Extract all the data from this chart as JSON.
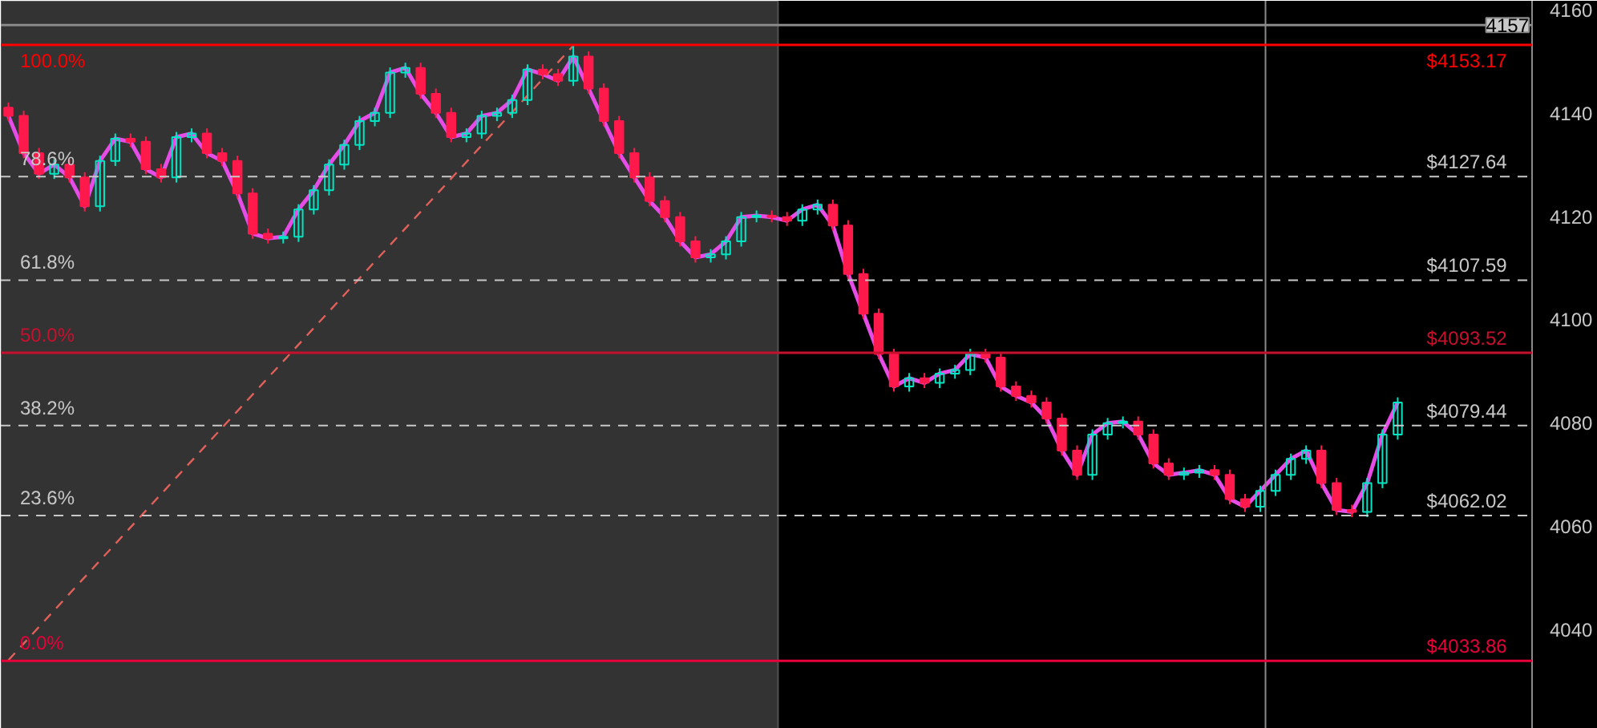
{
  "chart_data": {
    "type": "candlestick",
    "categories": [
      null,
      null,
      null,
      null,
      null,
      null,
      null,
      null,
      null,
      null,
      null,
      null,
      null,
      null,
      null,
      null,
      null,
      null,
      null,
      null,
      null,
      null,
      null,
      null,
      null,
      null,
      null,
      null,
      null,
      null,
      null,
      null,
      null,
      null,
      null,
      null,
      null,
      null,
      null,
      null,
      null,
      null,
      null,
      null,
      null,
      null,
      null,
      null,
      null,
      null,
      null,
      null,
      null,
      null,
      null,
      null,
      null,
      null,
      null,
      null,
      null,
      null,
      null,
      null,
      null,
      null,
      null,
      null,
      null,
      null,
      null,
      null,
      null,
      null,
      null,
      null,
      null,
      null,
      null,
      null,
      null,
      null,
      null,
      null,
      null,
      null,
      null,
      null,
      null,
      null,
      null,
      null
    ],
    "ohlc": [
      [
        4141.0,
        4142.0,
        4138.4,
        4139.4
      ],
      [
        4139.4,
        4140.4,
        4131.2,
        4132.2
      ],
      [
        4132.2,
        4133.2,
        4127.2,
        4128.2
      ],
      [
        4128.2,
        4131.0,
        4127.2,
        4130.0
      ],
      [
        4130.0,
        4131.0,
        4126.5,
        4127.5
      ],
      [
        4127.5,
        4128.5,
        4120.9,
        4121.9
      ],
      [
        4121.9,
        4131.7,
        4120.9,
        4130.7
      ],
      [
        4130.7,
        4136.0,
        4129.7,
        4135.0
      ],
      [
        4135.0,
        4136.0,
        4133.4,
        4134.4
      ],
      [
        4134.4,
        4135.4,
        4128.1,
        4129.1
      ],
      [
        4129.1,
        4130.1,
        4126.5,
        4127.5
      ],
      [
        4127.5,
        4136.3,
        4126.5,
        4135.3
      ],
      [
        4135.3,
        4137.0,
        4134.3,
        4136.0
      ],
      [
        4136.0,
        4137.0,
        4131.2,
        4132.2
      ],
      [
        4132.2,
        4133.2,
        4129.7,
        4130.7
      ],
      [
        4130.7,
        4131.7,
        4123.4,
        4124.4
      ],
      [
        4124.4,
        4125.4,
        4115.6,
        4116.6
      ],
      [
        4116.6,
        4117.6,
        4114.7,
        4115.7
      ],
      [
        4115.7,
        4117.0,
        4114.7,
        4116.0
      ],
      [
        4116.0,
        4122.3,
        4115.0,
        4121.3
      ],
      [
        4121.3,
        4126.0,
        4120.3,
        4125.0
      ],
      [
        4125.0,
        4131.0,
        4124.0,
        4130.0
      ],
      [
        4130.0,
        4134.8,
        4129.0,
        4133.8
      ],
      [
        4133.8,
        4139.4,
        4132.8,
        4138.4
      ],
      [
        4138.4,
        4141.0,
        4137.4,
        4140.0
      ],
      [
        4140.0,
        4148.8,
        4139.0,
        4147.8
      ],
      [
        4147.8,
        4149.7,
        4146.8,
        4148.7
      ],
      [
        4148.7,
        4149.7,
        4142.7,
        4143.7
      ],
      [
        4143.7,
        4144.7,
        4139.0,
        4140.0
      ],
      [
        4140.0,
        4141.0,
        4134.3,
        4135.3
      ],
      [
        4135.3,
        4137.0,
        4134.3,
        4136.0
      ],
      [
        4136.0,
        4140.4,
        4135.0,
        4139.4
      ],
      [
        4139.4,
        4141.0,
        4138.4,
        4140.0
      ],
      [
        4140.0,
        4143.5,
        4139.0,
        4142.5
      ],
      [
        4142.5,
        4149.4,
        4141.5,
        4148.4
      ],
      [
        4148.4,
        4149.4,
        4146.5,
        4147.5
      ],
      [
        4147.5,
        4148.5,
        4145.2,
        4146.2
      ],
      [
        4146.2,
        4153.2,
        4145.2,
        4150.9
      ],
      [
        4150.9,
        4151.9,
        4143.7,
        4144.7
      ],
      [
        4144.7,
        4145.7,
        4137.4,
        4138.4
      ],
      [
        4138.4,
        4139.4,
        4131.2,
        4132.2
      ],
      [
        4132.2,
        4133.2,
        4126.5,
        4127.5
      ],
      [
        4127.5,
        4128.5,
        4121.9,
        4122.9
      ],
      [
        4122.9,
        4123.9,
        4118.8,
        4119.8
      ],
      [
        4119.8,
        4120.8,
        4114.1,
        4115.1
      ],
      [
        4115.1,
        4116.1,
        4111.0,
        4112.0
      ],
      [
        4112.0,
        4113.6,
        4111.0,
        4112.6
      ],
      [
        4112.6,
        4116.1,
        4111.6,
        4115.1
      ],
      [
        4115.1,
        4120.8,
        4114.1,
        4119.8
      ],
      [
        4119.8,
        4121.1,
        4118.8,
        4120.1
      ],
      [
        4120.1,
        4121.1,
        4118.8,
        4119.8
      ],
      [
        4119.8,
        4120.8,
        4118.1,
        4119.1
      ],
      [
        4119.1,
        4122.3,
        4118.1,
        4121.3
      ],
      [
        4121.3,
        4123.2,
        4120.3,
        4122.2
      ],
      [
        4122.2,
        4123.2,
        4117.2,
        4118.2
      ],
      [
        4118.2,
        4119.2,
        4107.8,
        4108.8
      ],
      [
        4108.8,
        4109.8,
        4100.1,
        4101.1
      ],
      [
        4101.1,
        4102.1,
        4092.3,
        4093.3
      ],
      [
        4093.3,
        4094.3,
        4086.0,
        4087.0
      ],
      [
        4087.0,
        4089.6,
        4086.0,
        4088.6
      ],
      [
        4088.6,
        4089.6,
        4086.7,
        4087.7
      ],
      [
        4087.7,
        4090.5,
        4086.7,
        4089.5
      ],
      [
        4089.5,
        4091.2,
        4088.5,
        4090.2
      ],
      [
        4090.2,
        4094.3,
        4089.2,
        4093.3
      ],
      [
        4093.3,
        4094.3,
        4091.6,
        4092.6
      ],
      [
        4092.6,
        4093.6,
        4086.0,
        4087.0
      ],
      [
        4087.0,
        4088.0,
        4084.2,
        4085.2
      ],
      [
        4085.2,
        4086.2,
        4082.9,
        4083.9
      ],
      [
        4083.9,
        4084.9,
        4079.8,
        4080.8
      ],
      [
        4080.8,
        4081.8,
        4073.6,
        4074.6
      ],
      [
        4074.6,
        4075.6,
        4068.9,
        4069.9
      ],
      [
        4069.9,
        4078.7,
        4068.9,
        4077.7
      ],
      [
        4077.7,
        4080.9,
        4076.7,
        4079.9
      ],
      [
        4079.9,
        4081.2,
        4078.9,
        4080.2
      ],
      [
        4080.2,
        4081.2,
        4076.7,
        4077.7
      ],
      [
        4077.7,
        4078.7,
        4071.1,
        4072.1
      ],
      [
        4072.1,
        4073.1,
        4068.9,
        4069.9
      ],
      [
        4069.9,
        4071.3,
        4068.9,
        4070.3
      ],
      [
        4070.3,
        4071.8,
        4069.3,
        4070.8
      ],
      [
        4070.8,
        4071.8,
        4068.9,
        4069.9
      ],
      [
        4069.9,
        4070.9,
        4064.2,
        4065.2
      ],
      [
        4065.2,
        4066.2,
        4062.7,
        4063.7
      ],
      [
        4063.7,
        4067.8,
        4062.7,
        4066.8
      ],
      [
        4066.8,
        4070.9,
        4065.8,
        4069.9
      ],
      [
        4069.9,
        4074.0,
        4068.9,
        4073.0
      ],
      [
        4073.0,
        4075.6,
        4072.0,
        4074.6
      ],
      [
        4074.6,
        4075.6,
        4067.3,
        4068.3
      ],
      [
        4068.3,
        4069.3,
        4062.1,
        4063.1
      ],
      [
        4063.1,
        4064.1,
        4061.7,
        4062.7
      ],
      [
        4062.7,
        4069.3,
        4061.7,
        4068.3
      ],
      [
        4068.3,
        4078.7,
        4067.3,
        4077.7
      ],
      [
        4077.7,
        4084.9,
        4076.7,
        4083.9
      ]
    ],
    "colors": [
      "#ff1a4b",
      "#ff1a4b",
      "#ff1a4b",
      "#00e5c3",
      "#ff1a4b",
      "#ff1a4b",
      "#00e5c3",
      "#00e5c3",
      "#ff1a4b",
      "#ff1a4b",
      "#ff1a4b",
      "#00e5c3",
      "#00e5c3",
      "#ff1a4b",
      "#ff1a4b",
      "#ff1a4b",
      "#ff1a4b",
      "#ff1a4b",
      "#00e5c3",
      "#00e5c3",
      "#00e5c3",
      "#00e5c3",
      "#00e5c3",
      "#00e5c3",
      "#00e5c3",
      "#00e5c3",
      "#00e5c3",
      "#ff1a4b",
      "#ff1a4b",
      "#ff1a4b",
      "#00e5c3",
      "#00e5c3",
      "#00e5c3",
      "#00e5c3",
      "#00e5c3",
      "#ff1a4b",
      "#ff1a4b",
      "#00e5c3",
      "#ff1a4b",
      "#ff1a4b",
      "#ff1a4b",
      "#ff1a4b",
      "#ff1a4b",
      "#ff1a4b",
      "#ff1a4b",
      "#ff1a4b",
      "#00e5c3",
      "#00e5c3",
      "#00e5c3",
      "#00e5c3",
      "#ff1a4b",
      "#ff1a4b",
      "#00e5c3",
      "#00e5c3",
      "#ff1a4b",
      "#ff1a4b",
      "#ff1a4b",
      "#ff1a4b",
      "#ff1a4b",
      "#00e5c3",
      "#ff1a4b",
      "#00e5c3",
      "#00e5c3",
      "#00e5c3",
      "#ff1a4b",
      "#ff1a4b",
      "#ff1a4b",
      "#ff1a4b",
      "#ff1a4b",
      "#ff1a4b",
      "#ff1a4b",
      "#00e5c3",
      "#00e5c3",
      "#00e5c3",
      "#ff1a4b",
      "#ff1a4b",
      "#ff1a4b",
      "#00e5c3",
      "#00e5c3",
      "#ff1a4b",
      "#ff1a4b",
      "#ff1a4b",
      "#00e5c3",
      "#00e5c3",
      "#00e5c3",
      "#00e5c3",
      "#ff1a4b",
      "#ff1a4b",
      "#ff1a4b",
      "#00e5c3",
      "#00e5c3",
      "#00e5c3"
    ],
    "series": [
      {
        "type": "line",
        "color": "#e64ce6",
        "values": [
          4139.4,
          4132.2,
          4128.2,
          4130.0,
          4127.5,
          4121.9,
          4130.7,
          4135.0,
          4134.4,
          4129.1,
          4127.5,
          4135.3,
          4136.0,
          4132.2,
          4130.7,
          4124.4,
          4116.6,
          4115.7,
          4116.0,
          4121.3,
          4125.0,
          4130.0,
          4133.8,
          4138.4,
          4140.0,
          4147.8,
          4148.7,
          4143.7,
          4140.0,
          4135.3,
          4136.0,
          4139.4,
          4140.0,
          4142.5,
          4148.4,
          4147.5,
          4146.2,
          4150.9,
          4144.7,
          4138.4,
          4132.2,
          4127.5,
          4122.9,
          4119.8,
          4115.1,
          4112.0,
          4112.6,
          4115.1,
          4119.8,
          4120.1,
          4119.8,
          4119.1,
          4121.3,
          4122.2,
          4118.2,
          4108.8,
          4101.1,
          4093.3,
          4087.0,
          4088.6,
          4087.7,
          4089.5,
          4090.2,
          4093.3,
          4092.6,
          4087.0,
          4085.2,
          4083.9,
          4080.8,
          4074.6,
          4069.9,
          4077.7,
          4079.9,
          4080.2,
          4077.7,
          4072.1,
          4069.9,
          4070.3,
          4070.8,
          4069.9,
          4065.2,
          4063.7,
          4066.8,
          4069.9,
          4073.0,
          4074.6,
          4068.3,
          4063.1,
          4062.7,
          4068.3,
          4077.7,
          4083.9
        ]
      },
      {
        "type": "line",
        "color": "#e0605a",
        "line_style": "dashed",
        "values": [
          4034,
          null,
          null,
          null,
          null,
          null,
          null,
          null,
          null,
          null,
          null,
          null,
          null,
          null,
          null,
          null,
          null,
          null,
          null,
          null,
          null,
          null,
          null,
          null,
          null,
          null,
          null,
          null,
          null,
          null,
          null,
          null,
          null,
          null,
          null,
          null,
          null,
          4153,
          null,
          null,
          null,
          null,
          null,
          null,
          null,
          null,
          null,
          null,
          null,
          null,
          null,
          null,
          null,
          null,
          null,
          null,
          null,
          null,
          null,
          null,
          null,
          null,
          null,
          null,
          null,
          null,
          null,
          null,
          null,
          null,
          null,
          null,
          null,
          null,
          null,
          null,
          null,
          null,
          null,
          null,
          null,
          null,
          null,
          null,
          null,
          null,
          null,
          null,
          null,
          null,
          null,
          null
        ]
      }
    ],
    "ylim": [
      4020.7,
      4161.7
    ],
    "yticks": [
      4040,
      4060,
      4080,
      4100,
      4120,
      4140,
      4160
    ],
    "tick_labels": "y",
    "grid": false,
    "ref_lines": [
      {
        "axis": "y",
        "value": 4153.17,
        "label": "$4153.17",
        "color": "#ff0000",
        "line_style": "solid"
      },
      {
        "axis": "y",
        "value": 4127.64,
        "label": "$4127.64",
        "color": "#c8c8c8",
        "line_style": "dashed"
      },
      {
        "axis": "y",
        "value": 4107.59,
        "label": "$4107.59",
        "color": "#c8c8c8",
        "line_style": "dashed"
      },
      {
        "axis": "y",
        "value": 4093.52,
        "label": "$4093.52",
        "color": "#c8102e",
        "line_style": "solid"
      },
      {
        "axis": "y",
        "value": 4079.44,
        "label": "$4079.44",
        "color": "#c8c8c8",
        "line_style": "dashed"
      },
      {
        "axis": "y",
        "value": 4062.02,
        "label": "$4062.02",
        "color": "#c8c8c8",
        "line_style": "dashed"
      },
      {
        "axis": "y",
        "value": 4033.86,
        "label": "$4033.86",
        "color": "#e8003a",
        "line_style": "solid"
      },
      {
        "axis": "y",
        "value": 4157,
        "label": "4157",
        "color": "#8a8a8a",
        "line_style": "solid"
      }
    ],
    "annotations": [
      {
        "text": "100.0%",
        "y": 4153.17
      },
      {
        "text": "78.6%",
        "y": 4127.64
      },
      {
        "text": "61.8%",
        "y": 4107.59
      },
      {
        "text": "50.0%",
        "y": 4093.52
      },
      {
        "text": "38.2%",
        "y": 4079.44
      },
      {
        "text": "23.6%",
        "y": 4062.02
      },
      {
        "text": "0.0%",
        "y": 4033.86
      }
    ]
  }
}
